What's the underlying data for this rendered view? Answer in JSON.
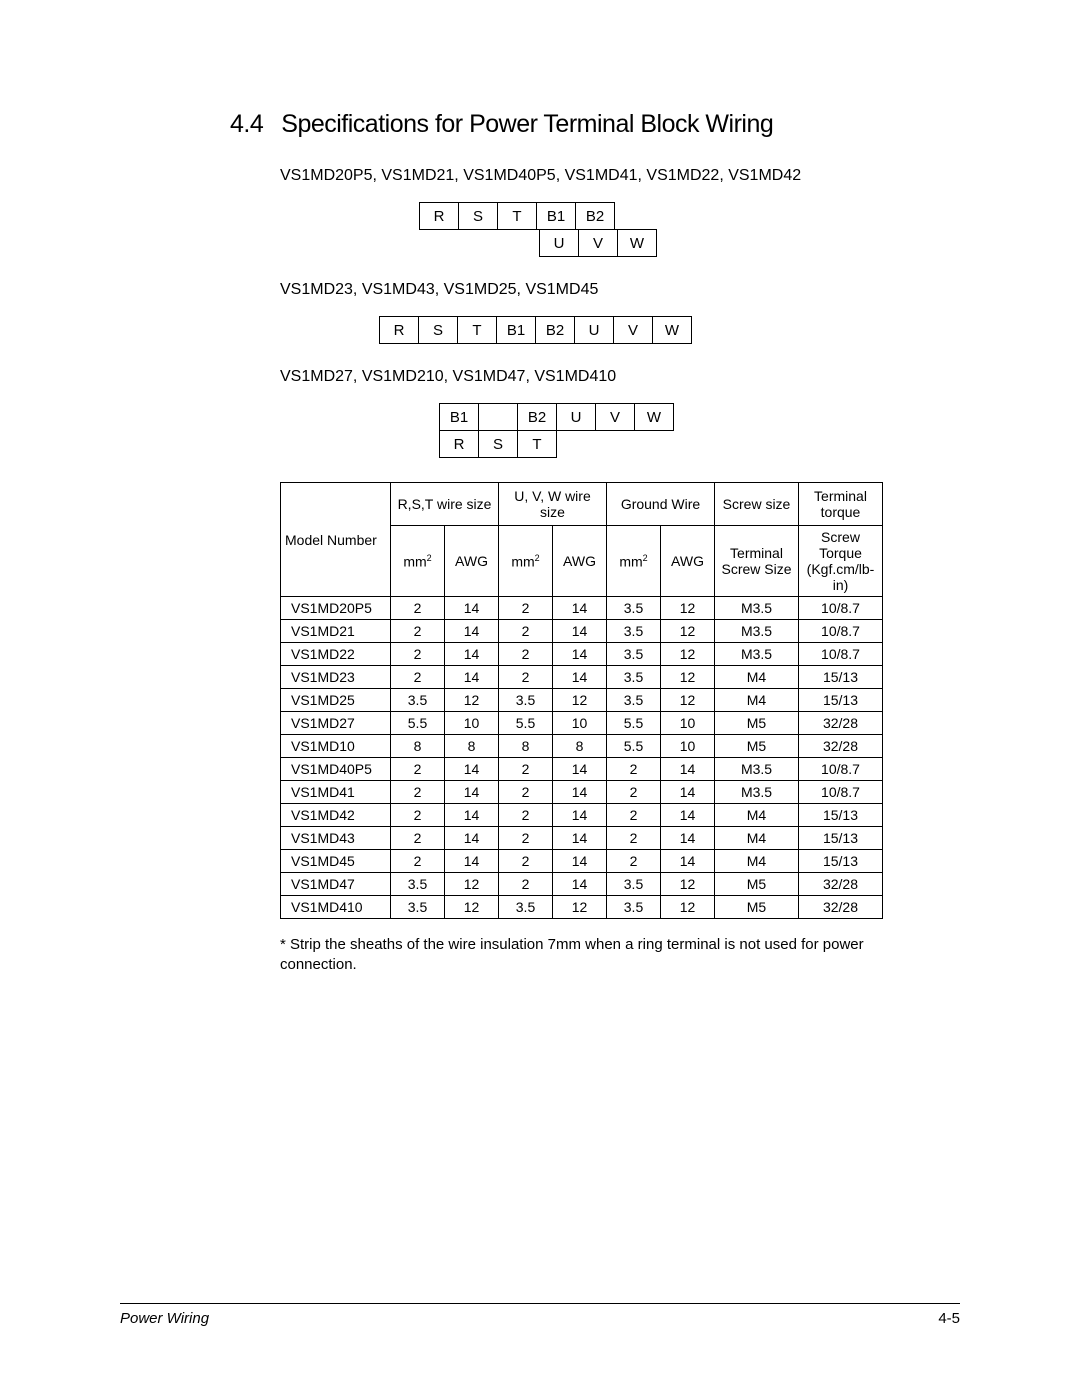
{
  "section": {
    "number": "4.4",
    "title": "Specifications for Power Terminal Block Wiring"
  },
  "group1": {
    "models": "VS1MD20P5, VS1MD21, VS1MD40P5, VS1MD41, VS1MD22, VS1MD42",
    "row1": [
      "R",
      "S",
      "T",
      "B1",
      "B2",
      ""
    ],
    "row2": [
      "",
      "",
      "",
      "U",
      "V",
      "W"
    ]
  },
  "group2": {
    "models": "VS1MD23, VS1MD43, VS1MD25, VS1MD45",
    "row1": [
      "R",
      "S",
      "T",
      "B1",
      "B2",
      "U",
      "V",
      "W"
    ]
  },
  "group3": {
    "models": "VS1MD27, VS1MD210, VS1MD47, VS1MD410",
    "row1": [
      "B1",
      "",
      "B2",
      "U",
      "V",
      "W"
    ],
    "row2": [
      "R",
      "S",
      "T"
    ]
  },
  "table": {
    "header1": {
      "model": "Model Number",
      "rst": "R,S,T wire size",
      "uvw": "U, V, W wire size",
      "gnd": "Ground Wire",
      "screw": "Screw size",
      "torque": "Terminal torque"
    },
    "header2": {
      "mm2": "mm",
      "sup": "2",
      "awg": "AWG",
      "screw": "Terminal Screw Size",
      "torque": "Screw Torque (Kgf.cm/lb-in)"
    },
    "rows": [
      [
        "VS1MD20P5",
        "2",
        "14",
        "2",
        "14",
        "3.5",
        "12",
        "M3.5",
        "10/8.7"
      ],
      [
        "VS1MD21",
        "2",
        "14",
        "2",
        "14",
        "3.5",
        "12",
        "M3.5",
        "10/8.7"
      ],
      [
        "VS1MD22",
        "2",
        "14",
        "2",
        "14",
        "3.5",
        "12",
        "M3.5",
        "10/8.7"
      ],
      [
        "VS1MD23",
        "2",
        "14",
        "2",
        "14",
        "3.5",
        "12",
        "M4",
        "15/13"
      ],
      [
        "VS1MD25",
        "3.5",
        "12",
        "3.5",
        "12",
        "3.5",
        "12",
        "M4",
        "15/13"
      ],
      [
        "VS1MD27",
        "5.5",
        "10",
        "5.5",
        "10",
        "5.5",
        "10",
        "M5",
        "32/28"
      ],
      [
        "VS1MD10",
        "8",
        "8",
        "8",
        "8",
        "5.5",
        "10",
        "M5",
        "32/28"
      ],
      [
        "VS1MD40P5",
        "2",
        "14",
        "2",
        "14",
        "2",
        "14",
        "M3.5",
        "10/8.7"
      ],
      [
        "VS1MD41",
        "2",
        "14",
        "2",
        "14",
        "2",
        "14",
        "M3.5",
        "10/8.7"
      ],
      [
        "VS1MD42",
        "2",
        "14",
        "2",
        "14",
        "2",
        "14",
        "M4",
        "15/13"
      ],
      [
        "VS1MD43",
        "2",
        "14",
        "2",
        "14",
        "2",
        "14",
        "M4",
        "15/13"
      ],
      [
        "VS1MD45",
        "2",
        "14",
        "2",
        "14",
        "2",
        "14",
        "M4",
        "15/13"
      ],
      [
        "VS1MD47",
        "3.5",
        "12",
        "2",
        "14",
        "3.5",
        "12",
        "M5",
        "32/28"
      ],
      [
        "VS1MD410",
        "3.5",
        "12",
        "3.5",
        "12",
        "3.5",
        "12",
        "M5",
        "32/28"
      ]
    ]
  },
  "note": "* Strip the sheaths of the wire insulation 7mm when a ring terminal is not used for power connection.",
  "footer": {
    "left": "Power Wiring",
    "right": "4-5"
  }
}
